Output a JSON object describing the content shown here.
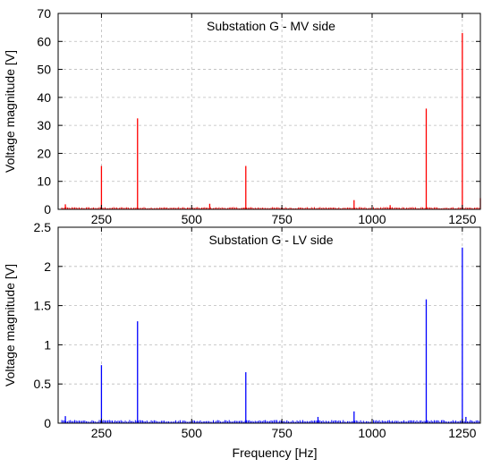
{
  "xlabel": "Frequency [Hz]",
  "chart_data": [
    {
      "type": "bar",
      "title": "Substation G - MV side",
      "xlabel": "",
      "ylabel": "Voltage magnitude [V]",
      "xlim": [
        130,
        1300
      ],
      "ylim": [
        0,
        70
      ],
      "x_ticks": [
        250,
        500,
        750,
        1000,
        1250
      ],
      "y_ticks": [
        0,
        10,
        20,
        30,
        40,
        50,
        60,
        70
      ],
      "grid": "dashed",
      "color": "#ff0000",
      "baseline_noise": 0.8,
      "peaks": [
        {
          "x": 150,
          "y": 1.8
        },
        {
          "x": 250,
          "y": 15.5
        },
        {
          "x": 350,
          "y": 32.5
        },
        {
          "x": 550,
          "y": 2.0
        },
        {
          "x": 650,
          "y": 15.5
        },
        {
          "x": 950,
          "y": 3.3
        },
        {
          "x": 1050,
          "y": 1.5
        },
        {
          "x": 1150,
          "y": 36.0
        },
        {
          "x": 1250,
          "y": 63.0
        },
        {
          "x": 1300,
          "y": 4.0
        }
      ]
    },
    {
      "type": "bar",
      "title": "Substation G - LV side",
      "xlabel": "Frequency [Hz]",
      "ylabel": "Voltage magnitude [V]",
      "xlim": [
        130,
        1300
      ],
      "ylim": [
        0,
        2.5
      ],
      "x_ticks": [
        250,
        500,
        750,
        1000,
        1250
      ],
      "y_ticks": [
        0,
        0.5,
        1,
        1.5,
        2,
        2.5
      ],
      "grid": "dashed",
      "color": "#0000ff",
      "baseline_noise": 0.04,
      "peaks": [
        {
          "x": 150,
          "y": 0.09
        },
        {
          "x": 250,
          "y": 0.74
        },
        {
          "x": 350,
          "y": 1.3
        },
        {
          "x": 650,
          "y": 0.65
        },
        {
          "x": 850,
          "y": 0.08
        },
        {
          "x": 950,
          "y": 0.15
        },
        {
          "x": 1150,
          "y": 1.58
        },
        {
          "x": 1250,
          "y": 2.24
        },
        {
          "x": 1260,
          "y": 0.08
        }
      ]
    }
  ]
}
